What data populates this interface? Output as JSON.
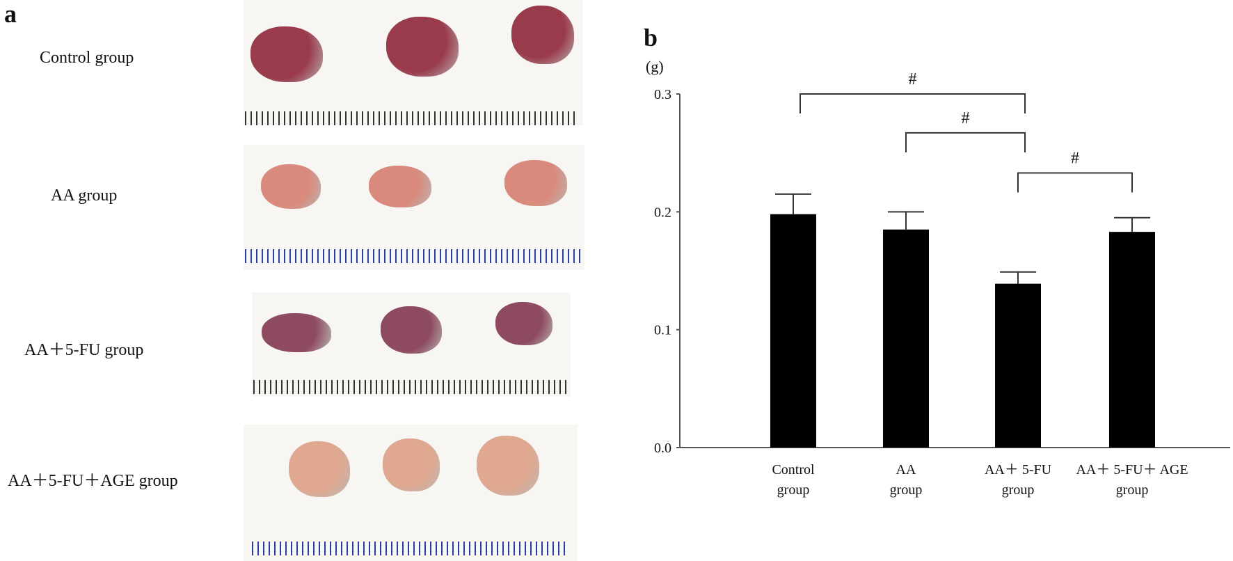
{
  "panel_a": {
    "letter": "a",
    "groups": [
      {
        "label": "Control group",
        "tissue_color": "#9a3b4c",
        "ruler_color": "#333333"
      },
      {
        "label": "AA group",
        "tissue_color": "#d98a7c",
        "ruler_color": "#2a3f9a"
      },
      {
        "label": "AA＋5-FU group",
        "tissue_color": "#8e4a60",
        "ruler_color": "#333333"
      },
      {
        "label": "AA＋5-FU＋AGE group",
        "tissue_color": "#e0a890",
        "ruler_color": "#2a3f9a"
      }
    ]
  },
  "panel_b": {
    "letter": "b"
  },
  "chart_data": {
    "type": "bar",
    "title": "",
    "xlabel": "",
    "ylabel": "(g)",
    "ylim": [
      0.0,
      0.3
    ],
    "yticks": [
      "0.0",
      "0.1",
      "0.2",
      "0.3"
    ],
    "ytick_values": [
      0.0,
      0.1,
      0.2,
      0.3
    ],
    "categories": [
      {
        "line1": "Control",
        "line2": "group"
      },
      {
        "line1": "AA",
        "line2": "group"
      },
      {
        "line1": "AA＋ 5-FU",
        "line2": "group"
      },
      {
        "line1": "AA＋ 5-FU＋ AGE",
        "line2": "group"
      }
    ],
    "values": [
      0.198,
      0.185,
      0.139,
      0.183
    ],
    "errors": [
      0.017,
      0.015,
      0.01,
      0.012
    ],
    "bar_color": "#000000",
    "significance": [
      {
        "from": 0,
        "to": 2,
        "level": 0.3,
        "label": "#"
      },
      {
        "from": 1,
        "to": 2,
        "level": 0.267,
        "label": "#"
      },
      {
        "from": 2,
        "to": 3,
        "level": 0.233,
        "label": "#"
      }
    ]
  }
}
